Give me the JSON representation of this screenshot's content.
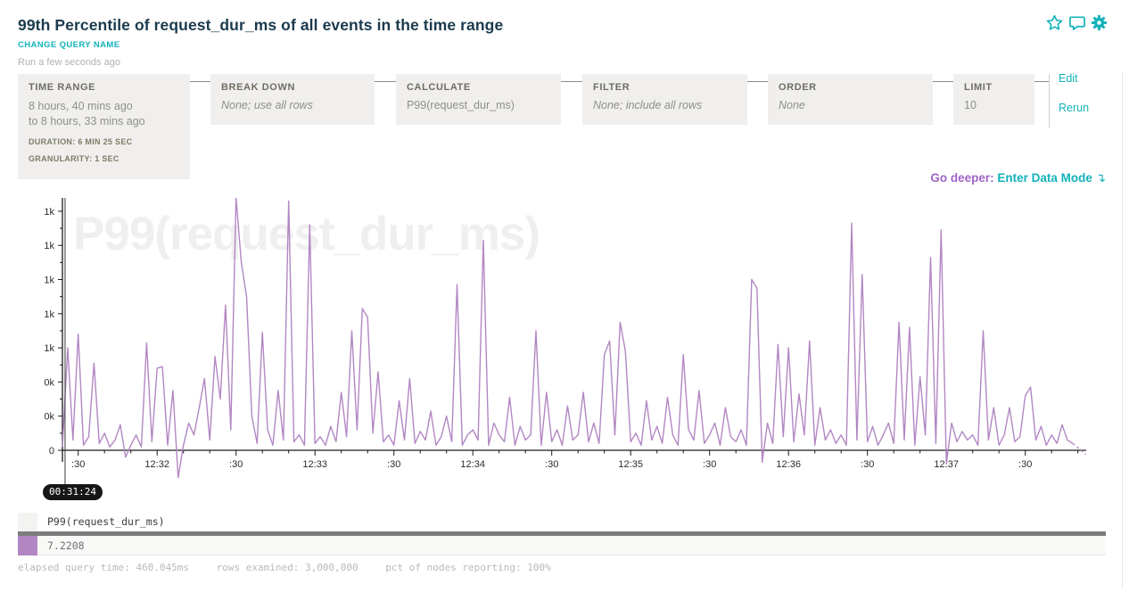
{
  "header": {
    "title": "99th Percentile of request_dur_ms of all events in the time range",
    "change_query_name": "CHANGE QUERY NAME",
    "run_status": "Run a few seconds ago",
    "accent_teal": "#12b2ba",
    "accent_purple": "#a065c8"
  },
  "query_builder": {
    "panels": [
      {
        "label": "TIME RANGE",
        "lines": [
          "8 hours, 40 mins ago",
          "to 8 hours, 33 mins ago"
        ],
        "meta": [
          "DURATION: 6 MIN 25 SEC",
          "GRANULARITY: 1 SEC"
        ]
      },
      {
        "label": "BREAK DOWN",
        "value": "None; use all rows"
      },
      {
        "label": "CALCULATE",
        "value": "P99(request_dur_ms)"
      },
      {
        "label": "FILTER",
        "value": "None; include all rows"
      },
      {
        "label": "ORDER",
        "value": "None"
      },
      {
        "label": "LIMIT",
        "value": "10"
      }
    ],
    "edit_label": "Edit",
    "rerun_label": "Rerun"
  },
  "go_deeper": {
    "prefix": "Go deeper:",
    "link": "Enter Data Mode",
    "arrow": "↴"
  },
  "chart_data": {
    "type": "line",
    "series_name": "P99(request_dur_ms)",
    "watermark": "P99(request_dur_ms)",
    "line_color": "#b287c3",
    "ylim": [
      -170,
      1480
    ],
    "y_tick_interval": 200,
    "y_tick_values": [
      0,
      200,
      400,
      600,
      800,
      1000,
      1200,
      1400
    ],
    "y_tick_labels_bottom_to_top": [
      "0",
      "0k",
      "0k",
      "1k",
      "1k",
      "1k",
      "1k",
      "1k"
    ],
    "x_range_seconds": [
      0,
      389
    ],
    "first_major_tick_sec": 6,
    "x_major_tick_interval_sec": 30,
    "x_minor_tick_interval_sec": 10,
    "x_tick_labels": [
      ":30",
      "12:32",
      ":30",
      "12:33",
      ":30",
      "12:34",
      ":30",
      "12:35",
      ":30",
      "12:36",
      ":30",
      "12:37",
      ":30"
    ],
    "crosshair_label": "00:31:24",
    "point_interval_sec": 2,
    "values": [
      20,
      600,
      60,
      680,
      30,
      80,
      510,
      40,
      100,
      20,
      60,
      150,
      -40,
      30,
      90,
      20,
      630,
      50,
      480,
      490,
      30,
      350,
      -160,
      30,
      160,
      90,
      250,
      420,
      60,
      550,
      300,
      850,
      120,
      1480,
      1100,
      900,
      200,
      40,
      690,
      120,
      30,
      350,
      60,
      1460,
      50,
      90,
      30,
      1320,
      40,
      80,
      30,
      140,
      50,
      340,
      80,
      700,
      120,
      830,
      780,
      100,
      460,
      50,
      90,
      30,
      290,
      60,
      420,
      40,
      110,
      60,
      230,
      30,
      80,
      200,
      50,
      970,
      30,
      90,
      120,
      60,
      1230,
      30,
      160,
      90,
      50,
      310,
      30,
      140,
      60,
      90,
      700,
      30,
      340,
      50,
      120,
      30,
      260,
      60,
      90,
      340,
      50,
      160,
      40,
      560,
      640,
      90,
      750,
      580,
      50,
      100,
      30,
      290,
      60,
      140,
      40,
      310,
      90,
      30,
      560,
      120,
      60,
      350,
      40,
      90,
      160,
      30,
      250,
      80,
      50,
      120,
      30,
      1000,
      950,
      -70,
      160,
      40,
      620,
      80,
      600,
      50,
      330,
      90,
      640,
      30,
      250,
      60,
      120,
      40,
      90,
      30,
      1330,
      60,
      1030,
      50,
      140,
      30,
      90,
      160,
      40,
      750,
      60,
      720,
      30,
      430,
      90,
      1130,
      40,
      1290,
      -80,
      160,
      50,
      110,
      60,
      90,
      30,
      700,
      60,
      250,
      30,
      90,
      250,
      50,
      80,
      320,
      370,
      60,
      140,
      30,
      90,
      40,
      150,
      60,
      40
    ],
    "tail_dashed": [
      [
        384,
        40
      ],
      [
        386,
        15
      ],
      [
        389,
        -25
      ]
    ]
  },
  "table": {
    "header": "P99(request_dur_ms)",
    "rows": [
      {
        "swatch_color": "#b287c3",
        "value": "7.2208"
      }
    ]
  },
  "footer": {
    "stats": [
      "elapsed query time: 460.045ms",
      "rows examined: 3,000,000",
      "pct of nodes reporting: 100%"
    ]
  }
}
